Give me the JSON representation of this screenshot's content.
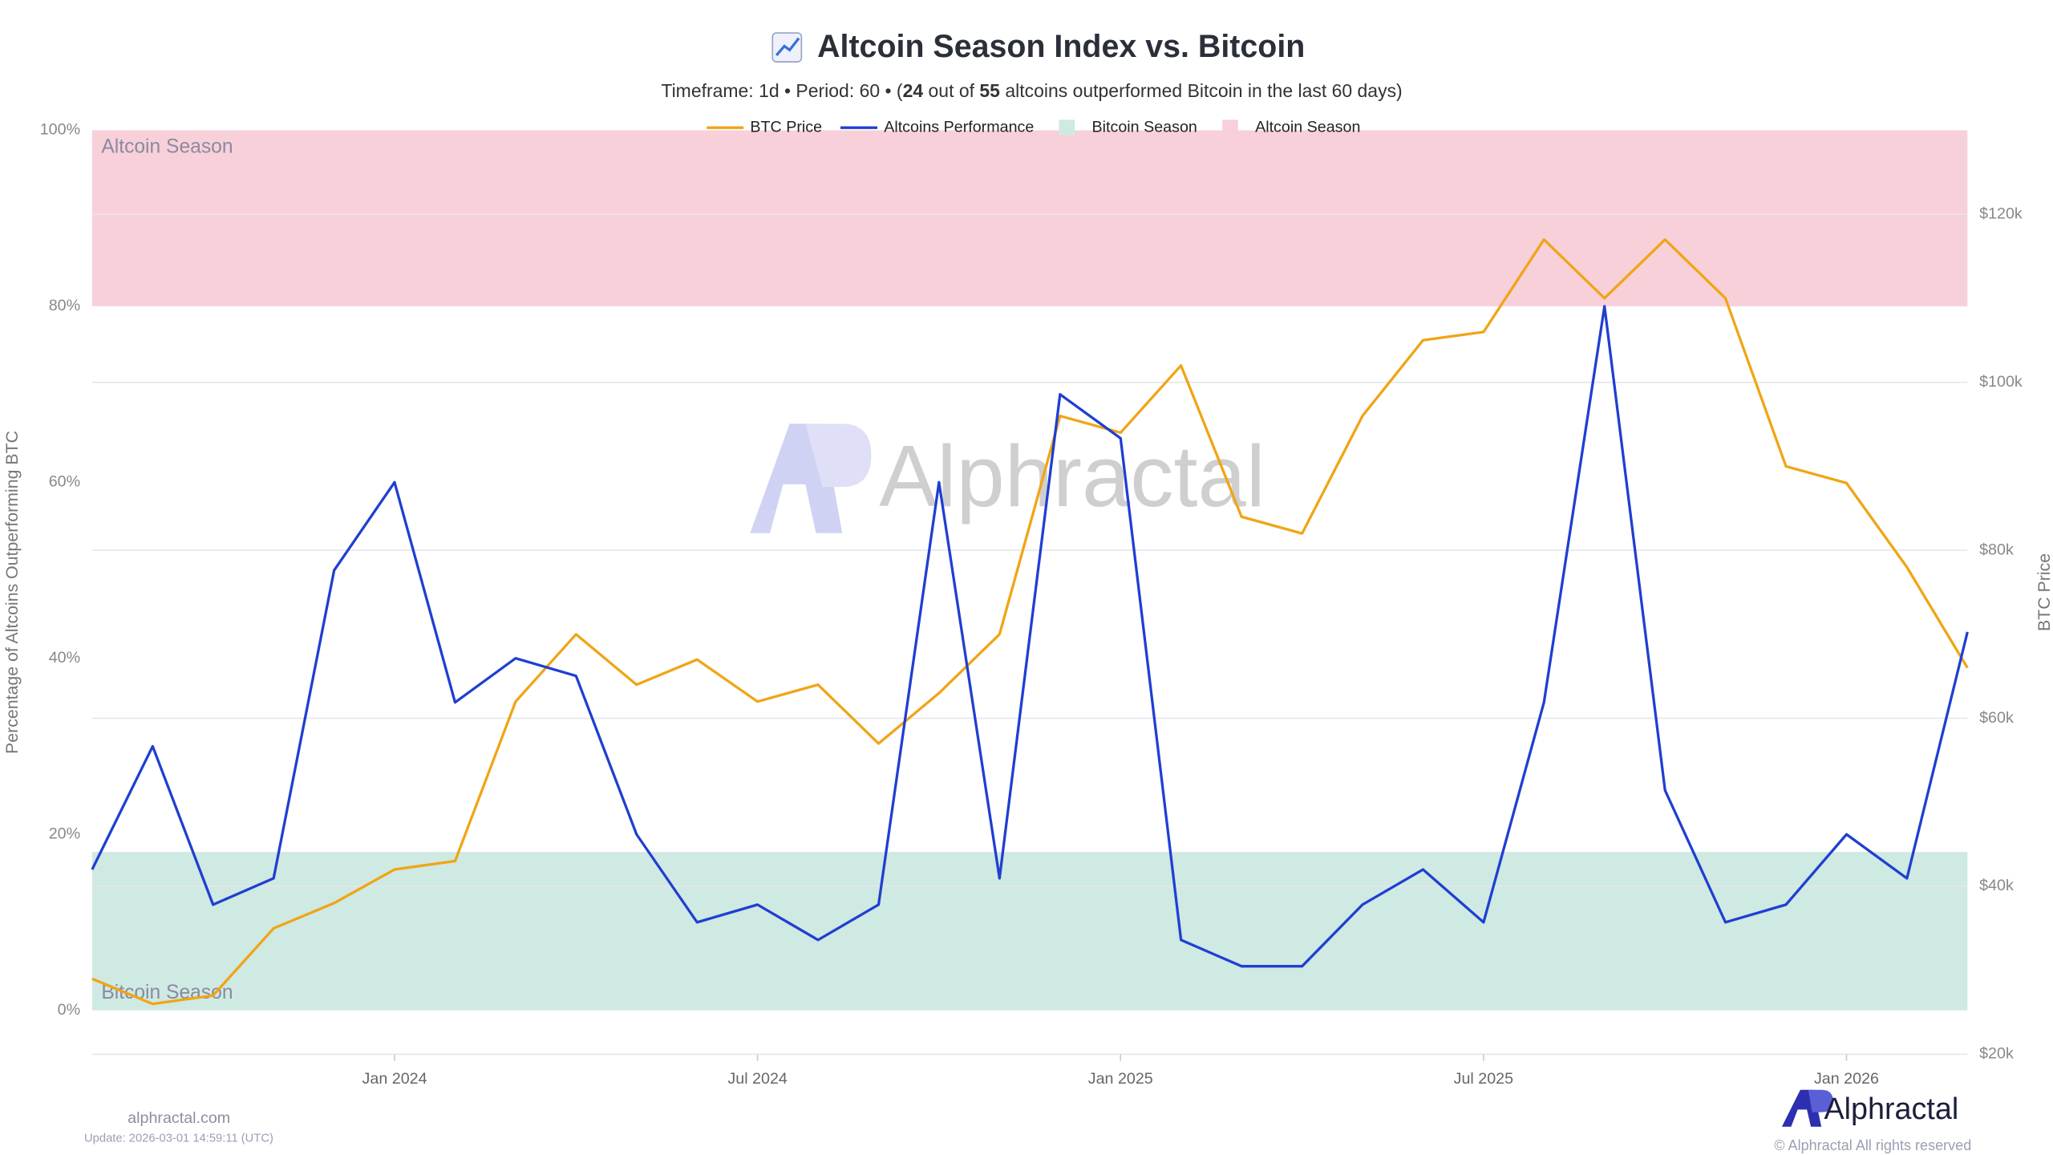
{
  "chart_data": {
    "type": "line",
    "title": "Altcoin Season Index vs. Bitcoin",
    "subtitle_parts": [
      "Timeframe: 1d  •  Period: 60  •  (",
      "24",
      " out of ",
      "55",
      " altcoins outperformed Bitcoin in the last 60 days)"
    ],
    "y_label": "Percentage of Altcoins Outperforming BTC",
    "y2_label": "BTC Price",
    "x": [
      "2023-08",
      "2023-09",
      "2023-10",
      "2023-11",
      "2023-12",
      "2024-01",
      "2024-02",
      "2024-03",
      "2024-04",
      "2024-05",
      "2024-06",
      "2024-07",
      "2024-08",
      "2024-09",
      "2024-10",
      "2024-11",
      "2024-12",
      "2025-01",
      "2025-02",
      "2025-03",
      "2025-04",
      "2025-05",
      "2025-06",
      "2025-07",
      "2025-08",
      "2025-09",
      "2025-10",
      "2025-11",
      "2025-12",
      "2026-01",
      "2026-02",
      "2026-03"
    ],
    "xlim": [
      "2023-08",
      "2026-03"
    ],
    "xticks": [
      {
        "value": "2024-01",
        "label": "Jan 2024"
      },
      {
        "value": "2024-07",
        "label": "Jul 2024"
      },
      {
        "value": "2025-01",
        "label": "Jan 2025"
      },
      {
        "value": "2025-07",
        "label": "Jul 2025"
      },
      {
        "value": "2026-01",
        "label": "Jan 2026"
      }
    ],
    "ylim": [
      -5,
      100
    ],
    "yticks": [
      {
        "value": 0,
        "label": "0%"
      },
      {
        "value": 20,
        "label": "20%"
      },
      {
        "value": 40,
        "label": "40%"
      },
      {
        "value": 60,
        "label": "60%"
      },
      {
        "value": 80,
        "label": "80%"
      },
      {
        "value": 100,
        "label": "100%"
      }
    ],
    "y2lim": [
      20000,
      130000
    ],
    "y2ticks": [
      {
        "value": 20000,
        "label": "$20k"
      },
      {
        "value": 40000,
        "label": "$40k"
      },
      {
        "value": 60000,
        "label": "$60k"
      },
      {
        "value": 80000,
        "label": "$80k"
      },
      {
        "value": 100000,
        "label": "$100k"
      },
      {
        "value": 120000,
        "label": "$120k"
      }
    ],
    "grid": true,
    "series": [
      {
        "name": "BTC Price",
        "color": "#f0a515",
        "axis": "y2",
        "values": [
          29000,
          26000,
          27000,
          35000,
          38000,
          42000,
          43000,
          62000,
          70000,
          64000,
          67000,
          62000,
          64000,
          57000,
          63000,
          70000,
          96000,
          94000,
          102000,
          84000,
          82000,
          96000,
          105000,
          106000,
          117000,
          110000,
          117000,
          110000,
          90000,
          88000,
          78000,
          66000
        ]
      },
      {
        "name": "Altcoins Performance",
        "color": "#1f3fd1",
        "axis": "y",
        "values": [
          16,
          30,
          12,
          15,
          50,
          60,
          35,
          40,
          38,
          20,
          10,
          12,
          8,
          12,
          60,
          15,
          70,
          65,
          8,
          5,
          5,
          12,
          16,
          10,
          35,
          80,
          25,
          10,
          12,
          20,
          15,
          43
        ]
      }
    ],
    "bands": [
      {
        "name": "Bitcoin Season",
        "range": [
          0,
          18
        ],
        "color": "#cfe9e3"
      },
      {
        "name": "Altcoin Season",
        "range": [
          80,
          100
        ],
        "color": "#f8d0da"
      }
    ],
    "watermark": "Alphractal",
    "source": "alphractal.com",
    "update": "Update: 2026-03-01 14:59:11 (UTC)",
    "logo": "Alphractal",
    "copyright": "© Alphractal All rights reserved"
  }
}
